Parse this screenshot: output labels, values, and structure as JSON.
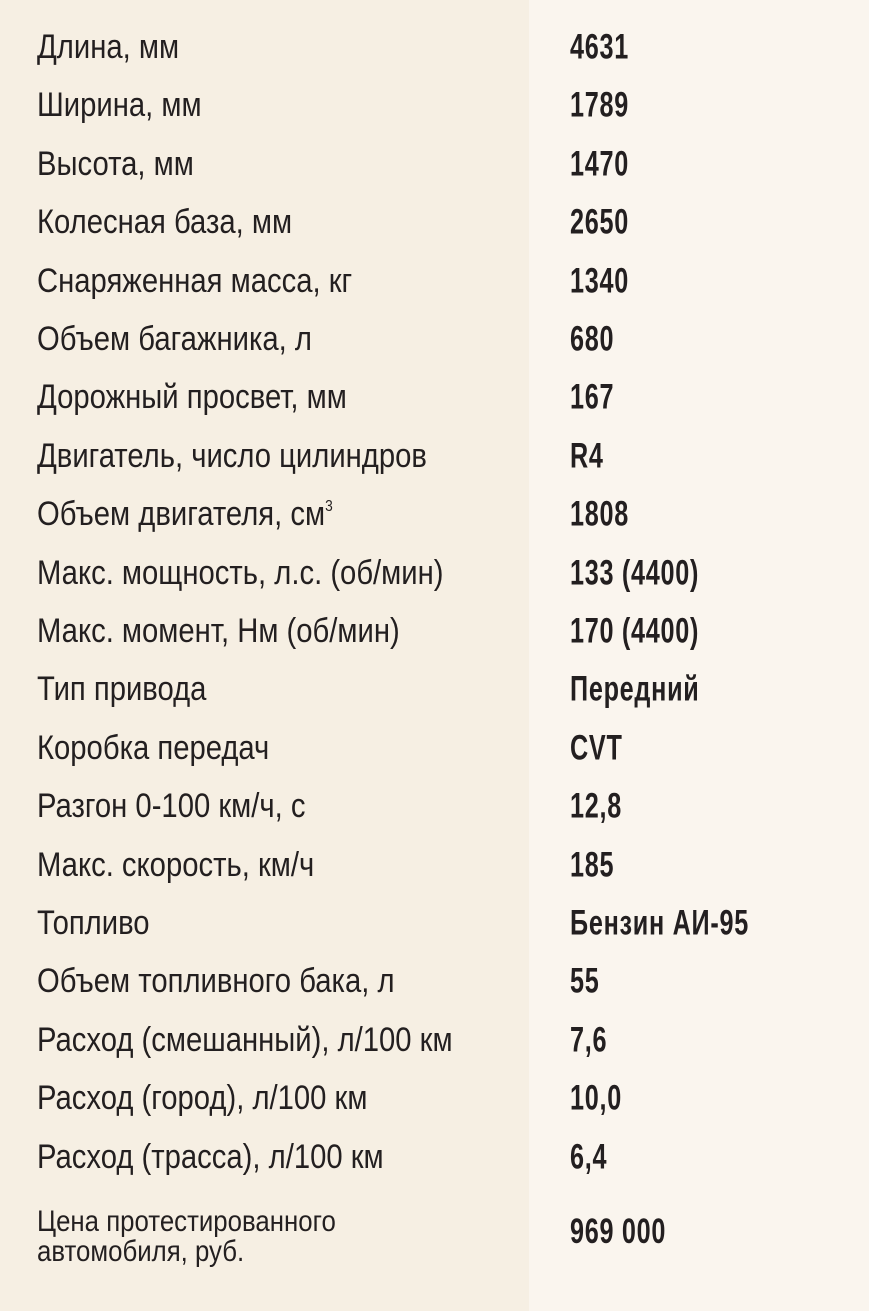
{
  "colors": {
    "label_bg": "#f6efe3",
    "value_bg": "#faf5ee",
    "text": "#231f20"
  },
  "specs": [
    {
      "label": "Длина, мм",
      "value": "4631"
    },
    {
      "label": "Ширина, мм",
      "value": "1789"
    },
    {
      "label": "Высота, мм",
      "value": "1470"
    },
    {
      "label": "Колесная база, мм",
      "value": "2650"
    },
    {
      "label": "Снаряженная масса, кг",
      "value": "1340"
    },
    {
      "label": "Объем багажника, л",
      "value": "680"
    },
    {
      "label": "Дорожный просвет, мм",
      "value": "167"
    },
    {
      "label": "Двигатель, число цилиндров",
      "value": "R4"
    },
    {
      "label": "Объем двигателя, см",
      "sup": "3",
      "value": "1808"
    },
    {
      "label": "Макс. мощность, л.с. (об/мин)",
      "value": "133 (4400)"
    },
    {
      "label": "Макс. момент, Нм (об/мин)",
      "value": "170 (4400)"
    },
    {
      "label": "Тип привода",
      "value": "Передний"
    },
    {
      "label": "Коробка передач",
      "value": "CVT"
    },
    {
      "label": "Разгон 0-100 км/ч, с",
      "value": "12,8"
    },
    {
      "label": "Макс. скорость, км/ч",
      "value": "185"
    },
    {
      "label": "Топливо",
      "value": "Бензин АИ-95"
    },
    {
      "label": "Объем топливного бака, л",
      "value": "55"
    },
    {
      "label": "Расход (смешанный), л/100 км",
      "value": "7,6"
    },
    {
      "label": "Расход (город), л/100 км",
      "value": "10,0"
    },
    {
      "label": "Расход (трасса), л/100 км",
      "value": "6,4"
    }
  ],
  "price": {
    "label_line1": "Цена протестированного",
    "label_line2": "автомобиля, руб.",
    "value": "969 000"
  }
}
